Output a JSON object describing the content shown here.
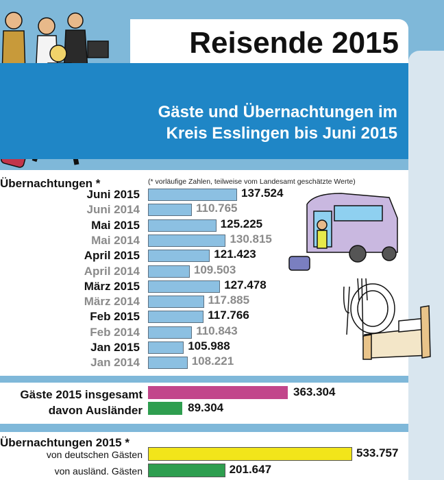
{
  "header": {
    "title": "Reisende 2015",
    "subtitle": "Gäste und Übernachtungen im\nKreis Esslingen bis Juni 2015"
  },
  "colors": {
    "monthly_bar": "#8cc0e2",
    "guests_total": "#c2468b",
    "guests_foreign": "#2e9e4f",
    "overnight_domestic": "#f2e51a",
    "overnight_foreign": "#2e9e4f"
  },
  "chart_data": [
    {
      "type": "bar",
      "orientation": "horizontal",
      "title": "Übernachtungen *",
      "note": "(* vorläufige Zahlen, teilweise vom Landesamt geschätzte Werte)",
      "categories": [
        "Juni 2015",
        "Juni 2014",
        "Mai 2015",
        "Mai 2014",
        "April 2015",
        "April 2014",
        "März 2015",
        "März 2014",
        "Feb 2015",
        "Feb 2014",
        "Jan 2015",
        "Jan 2014"
      ],
      "values": [
        137524,
        110765,
        125225,
        130815,
        121423,
        109503,
        127478,
        117885,
        117766,
        110843,
        105988,
        108221
      ],
      "value_labels": [
        "137.524",
        "110.765",
        "125.225",
        "130.815",
        "121.423",
        "109.503",
        "127.478",
        "117.885",
        "117.766",
        "110.843",
        "105.988",
        "108.221"
      ]
    },
    {
      "type": "bar",
      "orientation": "horizontal",
      "categories": [
        "Gäste 2015 insgesamt",
        "davon Ausländer"
      ],
      "values": [
        363304,
        89304
      ],
      "value_labels": [
        "363.304",
        "89.304"
      ]
    },
    {
      "type": "bar",
      "orientation": "horizontal",
      "title": "Übernachtungen 2015 *",
      "categories": [
        "von deutschen Gästen",
        "von ausländ. Gästen"
      ],
      "values": [
        533757,
        201647
      ],
      "value_labels": [
        "533.757",
        "201.647"
      ]
    }
  ]
}
